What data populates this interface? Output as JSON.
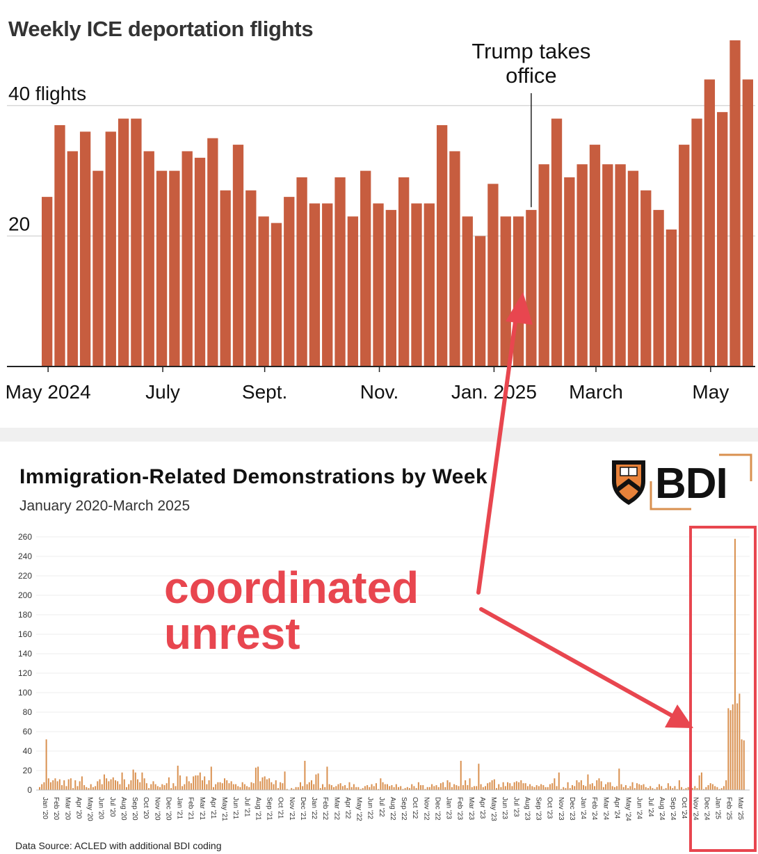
{
  "chart_data": [
    {
      "type": "bar",
      "title": "Weekly ICE deportation flights",
      "y_tick_labels": [
        "40 flights",
        "20"
      ],
      "y_ticks": [
        40,
        20
      ],
      "ylim": [
        0,
        50
      ],
      "x_tick_labels": [
        "May 2024",
        "July",
        "Sept.",
        "Nov.",
        "Jan. 2025",
        "March",
        "May"
      ],
      "x_tick_positions": [
        0.5,
        9.5,
        17.5,
        26.5,
        35.5,
        43.5,
        52.5
      ],
      "values": [
        26,
        37,
        33,
        36,
        30,
        36,
        38,
        38,
        33,
        30,
        30,
        33,
        32,
        35,
        27,
        34,
        27,
        23,
        22,
        26,
        29,
        25,
        25,
        29,
        23,
        30,
        25,
        24,
        29,
        25,
        25,
        37,
        33,
        23,
        20,
        28,
        23,
        23,
        24,
        31,
        38,
        29,
        31,
        34,
        31,
        31,
        30,
        27,
        24,
        21,
        34,
        38,
        44,
        39,
        50,
        44
      ],
      "annotation": {
        "lines": [
          "Trump takes",
          "office"
        ],
        "index": 38
      },
      "bar_color": "#c75d3f",
      "grid": true
    },
    {
      "type": "bar",
      "title": "Immigration-Related Demonstrations by Week",
      "subtitle": "January 2020-March 2025",
      "source": "Data Source: ACLED with additional BDI coding",
      "logo_text": "BDI",
      "y_ticks": [
        0,
        20,
        40,
        60,
        80,
        100,
        120,
        140,
        160,
        180,
        200,
        220,
        240,
        260
      ],
      "ylim": [
        0,
        260
      ],
      "x_tick_labels": [
        "Jan '20",
        "Feb '20",
        "Mar '20",
        "Apr '20",
        "May '20",
        "Jun '20",
        "Jul '20",
        "Aug '20",
        "Sep '20",
        "Oct '20",
        "Nov '20",
        "Dec '20",
        "Jan '21",
        "Feb '21",
        "Mar '21",
        "Apr '21",
        "May '21",
        "Jun '21",
        "Jul '21",
        "Aug '21",
        "Sep '21",
        "Oct '21",
        "Nov '21",
        "Dec '21",
        "Jan '22",
        "Feb '22",
        "Mar '22",
        "Apr '22",
        "May '22",
        "Jun '22",
        "Jul '22",
        "Aug '22",
        "Sep '22",
        "Oct '22",
        "Nov '22",
        "Dec '22",
        "Jan '23",
        "Feb '23",
        "Mar '23",
        "Apr '23",
        "May '23",
        "Jun '23",
        "Jul '23",
        "Aug '23",
        "Sep '23",
        "Oct '23",
        "Nov '23",
        "Dec '23",
        "Jan '24",
        "Feb '24",
        "Mar '24",
        "Apr '24",
        "May '24",
        "Jun '24",
        "Jul '24",
        "Aug '24",
        "Sep '24",
        "Oct '24",
        "Nov '24",
        "Dec '24",
        "Jan '25",
        "Feb '25",
        "Mar '25"
      ],
      "values": [
        3,
        6,
        8,
        52,
        12,
        8,
        10,
        12,
        9,
        11,
        5,
        10,
        4,
        11,
        12,
        2,
        10,
        4,
        9,
        14,
        5,
        3,
        2,
        6,
        3,
        4,
        9,
        11,
        6,
        16,
        12,
        9,
        11,
        13,
        10,
        9,
        6,
        18,
        11,
        3,
        6,
        10,
        21,
        18,
        11,
        8,
        18,
        12,
        7,
        2,
        6,
        9,
        6,
        4,
        3,
        6,
        5,
        7,
        13,
        2,
        7,
        4,
        25,
        15,
        4,
        6,
        14,
        9,
        7,
        14,
        15,
        15,
        18,
        10,
        14,
        6,
        10,
        24,
        3,
        6,
        8,
        8,
        7,
        12,
        10,
        7,
        9,
        6,
        6,
        4,
        3,
        8,
        6,
        4,
        3,
        8,
        7,
        23,
        24,
        9,
        13,
        14,
        11,
        12,
        8,
        6,
        10,
        2,
        8,
        7,
        19,
        1,
        0,
        2,
        1,
        3,
        3,
        8,
        4,
        30,
        6,
        8,
        10,
        6,
        16,
        17,
        2,
        6,
        3,
        24,
        6,
        5,
        3,
        4,
        6,
        7,
        4,
        5,
        2,
        8,
        3,
        6,
        3,
        3,
        1,
        2,
        4,
        5,
        3,
        6,
        4,
        7,
        1,
        12,
        8,
        6,
        6,
        4,
        5,
        3,
        6,
        3,
        4,
        1,
        2,
        3,
        2,
        6,
        4,
        2,
        8,
        5,
        5,
        1,
        3,
        3,
        6,
        4,
        5,
        3,
        7,
        8,
        3,
        10,
        8,
        3,
        6,
        5,
        4,
        30,
        5,
        10,
        5,
        12,
        3,
        4,
        4,
        27,
        6,
        3,
        4,
        7,
        8,
        10,
        11,
        2,
        6,
        3,
        8,
        4,
        8,
        7,
        4,
        8,
        9,
        8,
        10,
        7,
        7,
        4,
        6,
        4,
        3,
        5,
        4,
        6,
        5,
        3,
        3,
        6,
        7,
        12,
        4,
        18,
        1,
        3,
        2,
        8,
        2,
        5,
        4,
        10,
        8,
        10,
        5,
        4,
        16,
        6,
        7,
        4,
        10,
        12,
        9,
        3,
        6,
        8,
        8,
        4,
        3,
        4,
        22,
        6,
        3,
        5,
        2,
        4,
        8,
        2,
        7,
        6,
        5,
        6,
        3,
        2,
        4,
        2,
        1,
        3,
        6,
        4,
        1,
        2,
        7,
        4,
        2,
        4,
        1,
        10,
        3,
        1,
        2,
        3,
        2,
        2,
        4,
        2,
        15,
        18,
        1,
        3,
        5,
        7,
        6,
        4,
        3,
        1,
        2,
        4,
        10,
        84,
        82,
        88,
        258,
        89,
        99,
        52,
        51
      ],
      "bar_color": "#d9904f",
      "grid": true
    }
  ],
  "annotation": {
    "lines": [
      "coordinated",
      "unrest"
    ],
    "color": "#e8464f"
  }
}
